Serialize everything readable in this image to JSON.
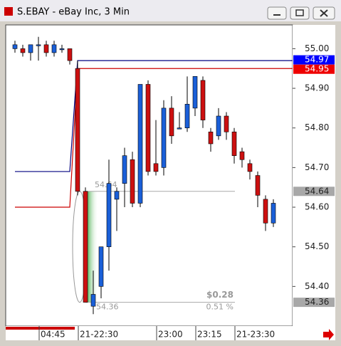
{
  "window": {
    "title": "S.EBAY - eBay Inc, 3 Min"
  },
  "chart_data": {
    "type": "candlestick",
    "categories": [
      null,
      null,
      null,
      "04:45",
      null,
      null,
      null,
      null,
      "21-22:30",
      null,
      null,
      null,
      null,
      null,
      null,
      null,
      null,
      null,
      "23:00",
      null,
      null,
      null,
      null,
      "23:15",
      null,
      null,
      null,
      null,
      "21-23:30",
      null,
      null,
      null,
      null,
      null
    ],
    "series": [
      {
        "open": [
          55.0,
          55.0,
          54.99,
          55.01,
          55.01,
          54.99,
          55.0,
          55.0,
          54.95,
          54.64,
          54.35,
          54.4,
          54.5,
          54.62,
          54.66,
          54.72,
          54.61,
          54.91,
          54.71,
          54.7,
          54.85,
          54.8,
          54.8,
          54.85,
          54.92,
          54.79,
          54.78,
          54.83,
          54.79,
          54.74,
          54.71,
          54.68,
          54.62,
          54.56
        ],
        "high": [
          55.02,
          55.01,
          55.01,
          55.03,
          55.02,
          55.02,
          55.01,
          55.0,
          54.97,
          54.65,
          54.44,
          54.5,
          54.72,
          54.65,
          54.75,
          54.74,
          54.91,
          54.92,
          54.82,
          54.87,
          54.88,
          54.84,
          54.93,
          54.93,
          54.93,
          54.8,
          54.85,
          54.84,
          54.8,
          54.75,
          54.72,
          54.69,
          54.63,
          54.62
        ],
        "low": [
          54.99,
          54.98,
          54.97,
          54.97,
          54.98,
          54.98,
          54.99,
          54.96,
          54.63,
          54.36,
          54.33,
          54.37,
          54.44,
          54.54,
          54.6,
          54.6,
          54.6,
          54.68,
          54.68,
          54.68,
          54.76,
          54.8,
          54.79,
          54.83,
          54.8,
          54.74,
          54.77,
          54.77,
          54.71,
          54.7,
          54.67,
          54.6,
          54.54,
          54.55
        ],
        "close": [
          55.01,
          54.99,
          55.01,
          55.01,
          54.99,
          55.01,
          55.0,
          54.97,
          54.64,
          54.36,
          54.38,
          54.5,
          54.66,
          54.64,
          54.73,
          54.61,
          54.91,
          54.69,
          54.69,
          54.85,
          54.78,
          54.8,
          54.86,
          54.93,
          54.82,
          54.76,
          54.83,
          54.79,
          54.73,
          54.72,
          54.69,
          54.63,
          54.56,
          54.61
        ]
      }
    ],
    "up_color": "#1a5fd8",
    "down_color": "#cc1010",
    "lines": [
      {
        "color": "#000080",
        "label_color": "#0000ff",
        "values": [
          54.69,
          54.69,
          54.69,
          54.69,
          54.69,
          54.69,
          54.69,
          54.69,
          54.97,
          54.97,
          54.97,
          54.97,
          54.97,
          54.97,
          54.97,
          54.97,
          54.97,
          54.97,
          54.97,
          54.97,
          54.97,
          54.97,
          54.97,
          54.97,
          54.97,
          54.97,
          54.97,
          54.97,
          54.97,
          54.97,
          54.97,
          54.97,
          54.97,
          54.97
        ]
      },
      {
        "color": "#cc0000",
        "label_color": "#ee0000",
        "values": [
          54.6,
          54.6,
          54.6,
          54.6,
          54.6,
          54.6,
          54.6,
          54.6,
          54.95,
          54.95,
          54.95,
          54.95,
          54.95,
          54.95,
          54.95,
          54.95,
          54.95,
          54.95,
          54.95,
          54.95,
          54.95,
          54.95,
          54.95,
          54.95,
          54.95,
          54.95,
          54.95,
          54.95,
          54.95,
          54.95,
          54.95,
          54.95,
          54.95,
          54.95
        ]
      }
    ],
    "measure": {
      "start": 54.64,
      "end": 54.36,
      "change": {
        "value": 0.28,
        "label": "$0.28"
      },
      "percent": {
        "value": 0.51,
        "label": "0.51 %"
      }
    },
    "ylim": [
      54.3,
      55.06
    ],
    "yticks": [
      {
        "value": 55.0,
        "label": "55.00"
      },
      {
        "value": 54.9,
        "label": "54.90"
      },
      {
        "value": 54.8,
        "label": "54.80"
      },
      {
        "value": 54.7,
        "label": "54.70"
      },
      {
        "value": 54.6,
        "label": "54.60"
      },
      {
        "value": 54.5,
        "label": "54.50"
      },
      {
        "value": 54.4,
        "label": "54.40"
      }
    ]
  }
}
